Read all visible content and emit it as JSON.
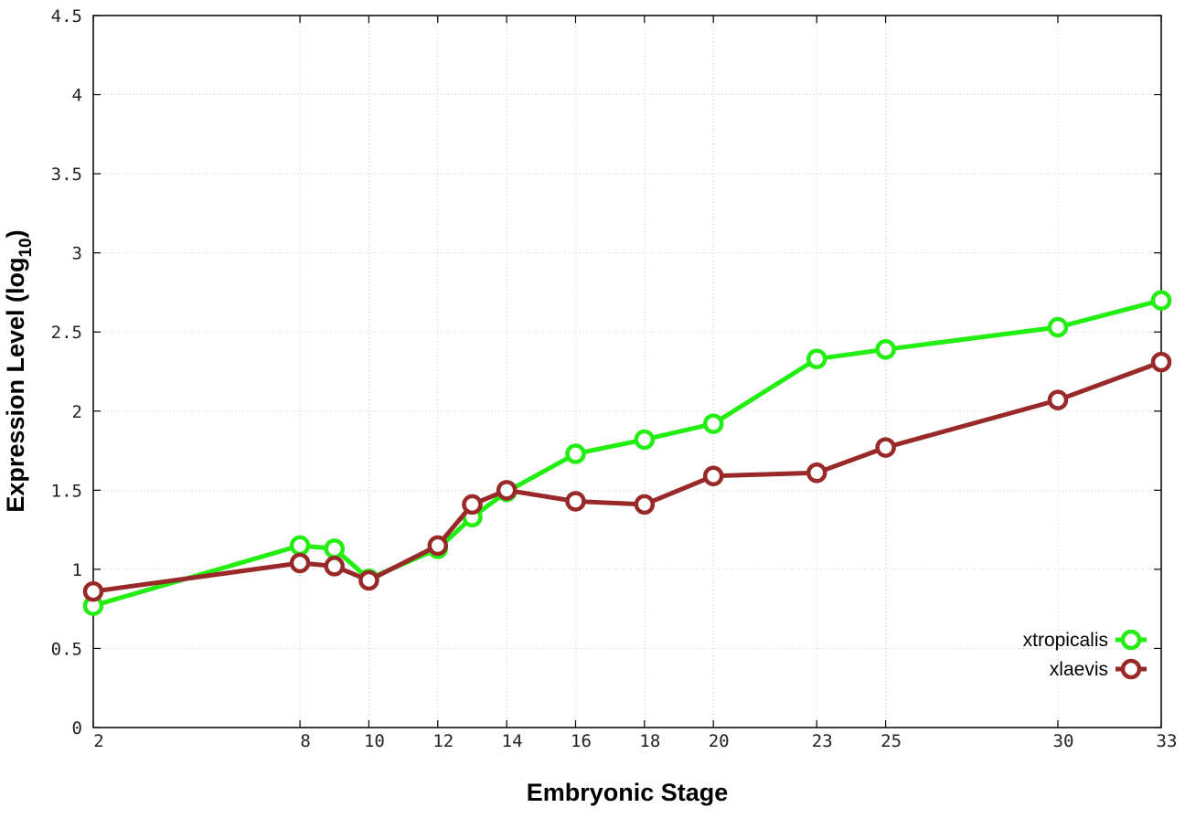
{
  "chart_data": {
    "type": "line",
    "title": "",
    "xlabel": "Embryonic Stage",
    "ylabel": "Expression Level (log",
    "ylabel_subscript": "10",
    "ylabel_close": ")",
    "xlim": [
      2,
      33
    ],
    "ylim": [
      0,
      4.5
    ],
    "x_ticks": [
      2,
      8,
      10,
      12,
      14,
      16,
      18,
      20,
      23,
      25,
      30,
      33
    ],
    "y_ticks": [
      0,
      0.5,
      1,
      1.5,
      2,
      2.5,
      3,
      3.5,
      4,
      4.5
    ],
    "y_tick_labels": [
      "0",
      "0.5",
      "1",
      "1.5",
      "2",
      "2.5",
      "3",
      "3.5",
      "4",
      "4.5"
    ],
    "grid": true,
    "legend_position": "bottom-right",
    "x": [
      2,
      8,
      9,
      10,
      12,
      13,
      14,
      16,
      18,
      20,
      23,
      25,
      30,
      33
    ],
    "series": [
      {
        "name": "xtropicalis",
        "color": "#22ee11",
        "values": [
          0.77,
          1.15,
          1.13,
          0.94,
          1.13,
          1.33,
          1.49,
          1.73,
          1.82,
          1.92,
          2.33,
          2.39,
          2.53,
          2.7
        ]
      },
      {
        "name": "xlaevis",
        "color": "#992929",
        "values": [
          0.86,
          1.04,
          1.02,
          0.93,
          1.15,
          1.41,
          1.5,
          1.43,
          1.41,
          1.59,
          1.61,
          1.77,
          2.07,
          2.31
        ]
      }
    ]
  }
}
